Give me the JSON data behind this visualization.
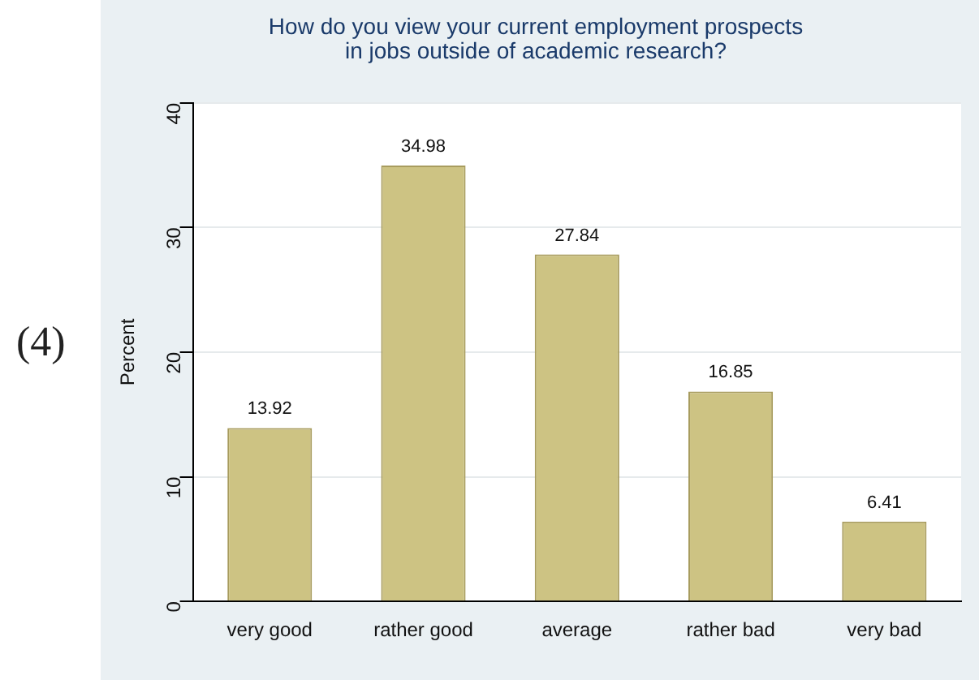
{
  "chart_data": {
    "type": "bar",
    "title": "How do you view your current employment prospects\nin jobs outside of academic research?",
    "ylabel": "Percent",
    "annotations": [
      "(4)"
    ],
    "categories": [
      "very good",
      "rather good",
      "average",
      "rather bad",
      "very bad"
    ],
    "values": [
      13.92,
      34.98,
      27.84,
      16.85,
      6.41
    ],
    "color": "#cdc383",
    "ylim": [
      0,
      40
    ],
    "yticks": [
      0,
      10,
      20,
      30,
      40
    ],
    "grid": "y",
    "data_labels": true,
    "legend": false
  }
}
